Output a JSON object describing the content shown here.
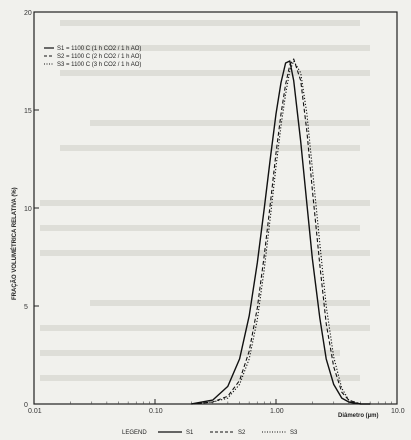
{
  "chart_data": {
    "type": "line",
    "title": "",
    "xlabel": "Diâmetro (µm)",
    "ylabel": "FRAÇÃO VOLUMÉTRICA RELATIVA (%)",
    "xscale": "log",
    "xlim": [
      0.01,
      10
    ],
    "ylim": [
      0,
      20
    ],
    "x_ticks": [
      "0.01",
      "0.10",
      "1.00",
      "10.0"
    ],
    "y_ticks": [
      "0",
      "5",
      "10",
      "15",
      "20"
    ],
    "grid": false,
    "legend": {
      "placement": "top-left",
      "entries": [
        "S1 = 1100  C (1 h CO2 / 1 h AO)",
        "S2 = 1100  C (2 h CO2 / 1 h AO)",
        "S3 = 1100  C (3 h CO2 / 1 h AO)"
      ]
    },
    "bottom_legend": {
      "prefix": "LEGEND",
      "entries": [
        "S1",
        "S2",
        "S3"
      ]
    },
    "x": [
      0.2,
      0.3,
      0.4,
      0.5,
      0.6,
      0.7,
      0.8,
      0.9,
      1.0,
      1.1,
      1.2,
      1.3,
      1.4,
      1.6,
      1.8,
      2.0,
      2.3,
      2.6,
      3.0,
      3.5,
      4.0,
      5.0,
      6.0
    ],
    "series": [
      {
        "name": "S1",
        "values": [
          0.0,
          0.2,
          0.9,
          2.3,
          4.5,
          7.2,
          10.0,
          12.6,
          14.8,
          16.4,
          17.4,
          17.5,
          16.5,
          13.4,
          10.2,
          7.4,
          4.4,
          2.3,
          1.0,
          0.3,
          0.1,
          0.0,
          0.0
        ]
      },
      {
        "name": "S2",
        "values": [
          0.0,
          0.1,
          0.4,
          1.2,
          2.7,
          4.9,
          7.6,
          10.3,
          12.8,
          14.8,
          16.3,
          17.3,
          17.6,
          16.5,
          13.9,
          10.9,
          7.1,
          4.1,
          1.9,
          0.6,
          0.2,
          0.0,
          0.0
        ]
      },
      {
        "name": "S3",
        "values": [
          0.0,
          0.1,
          0.3,
          1.0,
          2.3,
          4.3,
          6.9,
          9.6,
          12.1,
          14.2,
          15.8,
          17.0,
          17.5,
          16.9,
          14.8,
          12.0,
          8.2,
          5.0,
          2.4,
          0.8,
          0.2,
          0.0,
          0.0
        ]
      }
    ]
  },
  "colors": {
    "background": "#f1f1ed",
    "ink": "#222222"
  }
}
